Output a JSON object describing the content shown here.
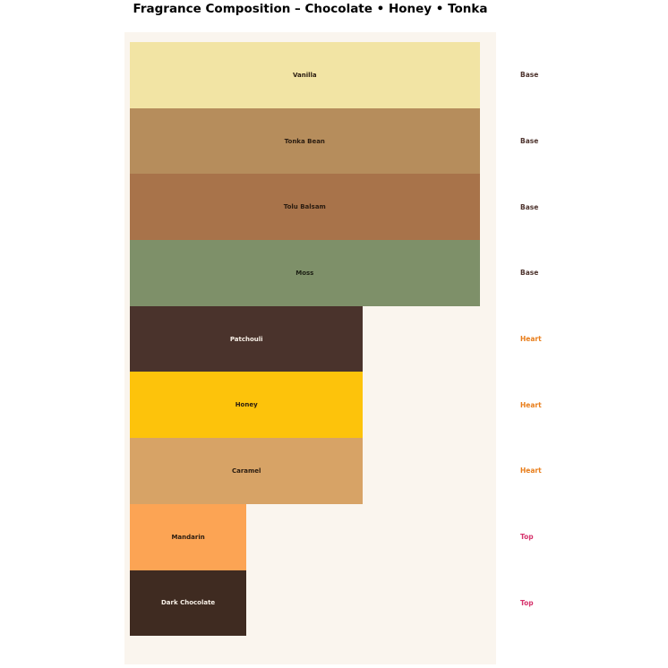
{
  "page": {
    "background_color": "#ffffff",
    "plot_background_color": "#faf5ee"
  },
  "chart_data": {
    "type": "bar",
    "orientation": "horizontal",
    "title": "Fragrance Composition – Chocolate • Honey • Tonka",
    "xlabel": "",
    "ylabel": "",
    "xlim": [
      0,
      3.15
    ],
    "grid": false,
    "legend": "none",
    "categories": [
      "Vanilla",
      "Tonka Bean",
      "Tolu Balsam",
      "Moss",
      "Patchouli",
      "Honey",
      "Caramel",
      "Mandarin",
      "Dark Chocolate"
    ],
    "values": [
      3,
      3,
      3,
      3,
      2,
      2,
      2,
      1,
      1
    ],
    "notes": [
      {
        "name": "Vanilla",
        "tier": "Base",
        "value": 3,
        "color": "#f2e4a4",
        "text_color": "#2a1c10"
      },
      {
        "name": "Tonka Bean",
        "tier": "Base",
        "value": 3,
        "color": "#b68d5c",
        "text_color": "#2a1c10"
      },
      {
        "name": "Tolu Balsam",
        "tier": "Base",
        "value": 3,
        "color": "#a8734a",
        "text_color": "#2a1c10"
      },
      {
        "name": "Moss",
        "tier": "Base",
        "value": 3,
        "color": "#7e9069",
        "text_color": "#1d2014"
      },
      {
        "name": "Patchouli",
        "tier": "Heart",
        "value": 2,
        "color": "#4a332c",
        "text_color": "#f7efe6"
      },
      {
        "name": "Honey",
        "tier": "Heart",
        "value": 2,
        "color": "#fdc30b",
        "text_color": "#2a1c10"
      },
      {
        "name": "Caramel",
        "tier": "Heart",
        "value": 2,
        "color": "#d7a366",
        "text_color": "#2a1c10"
      },
      {
        "name": "Mandarin",
        "tier": "Top",
        "value": 1,
        "color": "#fca454",
        "text_color": "#2a1c10"
      },
      {
        "name": "Dark Chocolate",
        "tier": "Top",
        "value": 1,
        "color": "#3f2b21",
        "text_color": "#f7efe6"
      }
    ],
    "tier_label_colors": {
      "Base": "#4e342e",
      "Heart": "#e87d1a",
      "Top": "#d6336c"
    }
  }
}
